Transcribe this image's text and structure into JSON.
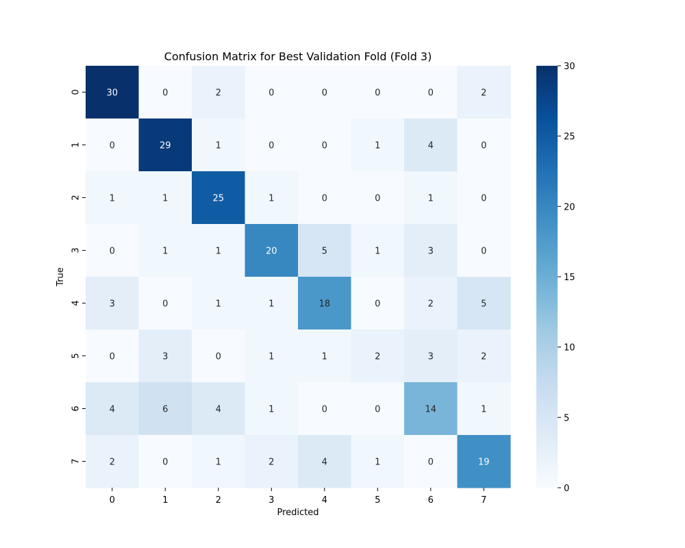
{
  "chart_data": {
    "type": "heatmap",
    "title": "Confusion Matrix for Best Validation Fold (Fold 3)",
    "xlabel": "Predicted",
    "ylabel": "True",
    "x_categories": [
      "0",
      "1",
      "2",
      "3",
      "4",
      "5",
      "6",
      "7"
    ],
    "y_categories": [
      "0",
      "1",
      "2",
      "3",
      "4",
      "5",
      "6",
      "7"
    ],
    "values": [
      [
        30,
        0,
        2,
        0,
        0,
        0,
        0,
        2
      ],
      [
        0,
        29,
        1,
        0,
        0,
        1,
        4,
        0
      ],
      [
        1,
        1,
        25,
        1,
        0,
        0,
        1,
        0
      ],
      [
        0,
        1,
        1,
        20,
        5,
        1,
        3,
        0
      ],
      [
        3,
        0,
        1,
        1,
        18,
        0,
        2,
        5
      ],
      [
        0,
        3,
        0,
        1,
        1,
        2,
        3,
        2
      ],
      [
        4,
        6,
        4,
        1,
        0,
        0,
        14,
        1
      ],
      [
        2,
        0,
        1,
        2,
        4,
        1,
        0,
        19
      ]
    ],
    "color_range": [
      0,
      30
    ],
    "colorbar_ticks": [
      0,
      5,
      10,
      15,
      20,
      25,
      30
    ],
    "colormap": "Blues",
    "annotations": true
  }
}
